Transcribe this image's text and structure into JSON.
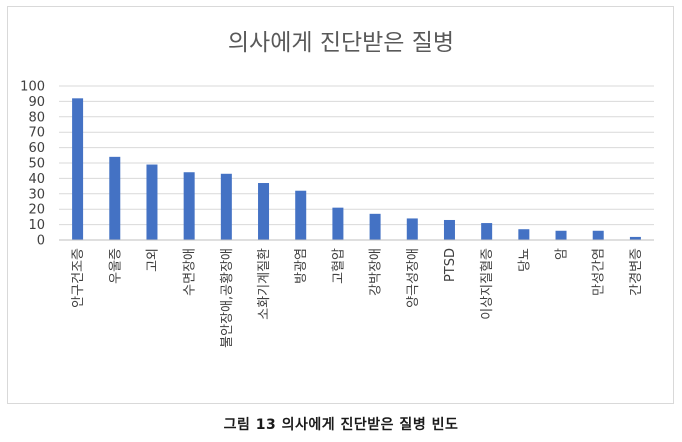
{
  "chart_data": {
    "type": "bar",
    "title": "의사에게 진단받은 질병",
    "categories": [
      "안구건조증",
      "우울증",
      "고외",
      "수면장애",
      "불안장애,공황장애",
      "소화기계질환",
      "방광염",
      "고혈압",
      "강박장애",
      "양극성장애",
      "PTSD",
      "이상지질혈증",
      "당뇨",
      "암",
      "만성간염",
      "간경변증"
    ],
    "values": [
      92,
      54,
      49,
      44,
      43,
      37,
      32,
      21,
      17,
      14,
      13,
      11,
      7,
      6,
      6,
      2
    ],
    "yticks": [
      "0",
      "10",
      "20",
      "30",
      "40",
      "50",
      "60",
      "70",
      "80",
      "90",
      "100"
    ],
    "ylim": [
      0,
      100
    ],
    "grid": true,
    "bar_color": "#4472c4"
  },
  "caption": "그림 13 의사에게 진단받은 질병 빈도"
}
